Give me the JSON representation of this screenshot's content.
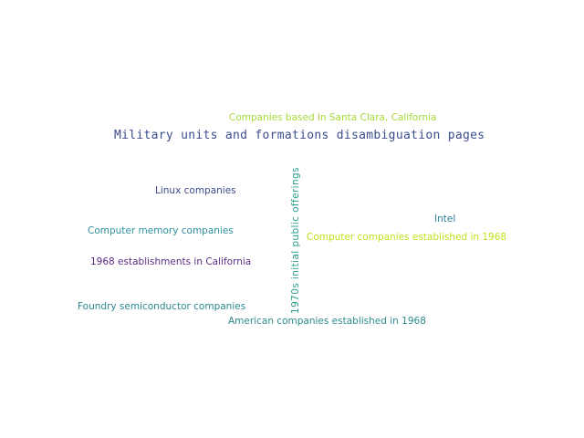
{
  "words": {
    "military": "Military units and formations disambiguation pages",
    "santa_clara": "Companies based in Santa Clara, California",
    "linux": "Linux companies",
    "memory": "Computer memory companies",
    "establishments": "1968 establishments in California",
    "foundry": "Foundry semiconductor companies",
    "american": "American companies established in 1968",
    "intel": "Intel",
    "computer_companies": "Computer companies established in 1968",
    "ipo": "1970s initial public offerings"
  },
  "colors": {
    "military": "#3b4e8c",
    "santa_clara": "#a8d93b",
    "linux": "#3f4a8a",
    "memory": "#2f8f9e",
    "establishments": "#5a2d82",
    "foundry": "#2a8a8f",
    "american": "#2e8c8c",
    "intel": "#2e7f9a",
    "computer_companies": "#c7e020",
    "ipo": "#2a9d8f"
  }
}
